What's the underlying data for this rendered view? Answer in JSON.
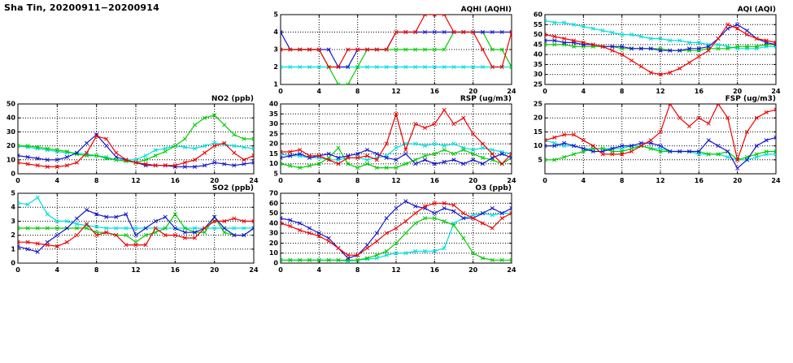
{
  "page_title": "Sha Tin, 20200911−20200914",
  "colors": {
    "red": "#ee0000",
    "blue": "#1515cc",
    "green": "#00cc00",
    "cyan": "#00dddd",
    "grid": "#000000"
  },
  "chart_data": [
    {
      "id": "aqhi",
      "type": "line",
      "title": "AQHI (AQHI)",
      "xlabel": "",
      "ylabel": "",
      "xlim": [
        0,
        24
      ],
      "xticks": [
        0,
        4,
        8,
        12,
        16,
        20,
        24
      ],
      "ylim": [
        1,
        5
      ],
      "yticks": [
        1,
        2,
        3,
        4,
        5
      ],
      "grid": true,
      "legend": "none",
      "series": [
        {
          "color": "cyan",
          "values": [
            2,
            2,
            2,
            2,
            2,
            2,
            2,
            2,
            2,
            2,
            2,
            2,
            2,
            2,
            2,
            2,
            2,
            2,
            2,
            2,
            2,
            2,
            2,
            2,
            2
          ]
        },
        {
          "color": "green",
          "values": [
            3,
            3,
            3,
            3,
            3,
            2,
            1,
            1,
            2,
            3,
            3,
            3,
            3,
            3,
            3,
            3,
            3,
            3,
            4,
            4,
            4,
            4,
            3,
            3,
            2
          ]
        },
        {
          "color": "blue",
          "values": [
            4,
            3,
            3,
            3,
            3,
            3,
            2,
            2,
            3,
            3,
            3,
            3,
            4,
            4,
            4,
            4,
            4,
            4,
            4,
            4,
            4,
            4,
            4,
            4,
            4
          ]
        },
        {
          "color": "red",
          "values": [
            3,
            3,
            3,
            3,
            3,
            2,
            2,
            3,
            3,
            3,
            3,
            3,
            4,
            4,
            4,
            5,
            5,
            5,
            4,
            4,
            4,
            3,
            2,
            2,
            4
          ]
        }
      ]
    },
    {
      "id": "aqi",
      "type": "line",
      "title": "AQI (AQI)",
      "xlabel": "",
      "ylabel": "",
      "xlim": [
        0,
        24
      ],
      "xticks": [
        0,
        4,
        8,
        12,
        16,
        20,
        24
      ],
      "ylim": [
        25,
        60
      ],
      "yticks": [
        25,
        30,
        35,
        40,
        45,
        50,
        55,
        60
      ],
      "grid": true,
      "legend": "none",
      "series": [
        {
          "color": "cyan",
          "values": [
            57,
            56,
            56,
            55,
            54,
            53,
            52,
            51,
            50,
            50,
            49,
            48,
            48,
            47,
            47,
            46,
            46,
            45,
            45,
            44,
            43,
            43,
            43,
            44,
            44
          ]
        },
        {
          "color": "green",
          "values": [
            45,
            45,
            45,
            44,
            44,
            44,
            44,
            44,
            43,
            43,
            43,
            43,
            43,
            42,
            42,
            42,
            42,
            43,
            43,
            43,
            44,
            44,
            44,
            45,
            45
          ]
        },
        {
          "color": "blue",
          "values": [
            47,
            47,
            46,
            46,
            45,
            45,
            44,
            44,
            44,
            43,
            43,
            43,
            42,
            42,
            42,
            43,
            43,
            44,
            48,
            53,
            55,
            52,
            48,
            46,
            45
          ]
        },
        {
          "color": "red",
          "values": [
            50,
            49,
            48,
            47,
            46,
            45,
            44,
            42,
            40,
            37,
            34,
            31,
            30,
            31,
            33,
            36,
            39,
            42,
            48,
            55,
            53,
            50,
            48,
            47,
            46
          ]
        }
      ]
    },
    {
      "id": "no2",
      "type": "line",
      "title": "NO2 (ppb)",
      "xlabel": "",
      "ylabel": "",
      "xlim": [
        0,
        24
      ],
      "xticks": [
        0,
        4,
        8,
        12,
        16,
        20,
        24
      ],
      "ylim": [
        0,
        50
      ],
      "yticks": [
        0,
        10,
        20,
        30,
        40,
        50
      ],
      "grid": true,
      "legend": "none",
      "series": [
        {
          "color": "cyan",
          "values": [
            20,
            19,
            18,
            17,
            16,
            15,
            15,
            14,
            13,
            12,
            10,
            10,
            10,
            13,
            17,
            18,
            20,
            19,
            18,
            20,
            22,
            21,
            20,
            19,
            18
          ]
        },
        {
          "color": "green",
          "values": [
            20,
            20,
            19,
            18,
            17,
            16,
            14,
            13,
            13,
            11,
            10,
            9,
            8,
            10,
            13,
            16,
            20,
            25,
            35,
            40,
            42,
            35,
            28,
            25,
            25
          ]
        },
        {
          "color": "blue",
          "values": [
            13,
            12,
            11,
            10,
            10,
            12,
            15,
            22,
            28,
            20,
            12,
            10,
            8,
            6,
            6,
            6,
            5,
            5,
            5,
            6,
            8,
            7,
            6,
            7,
            8
          ]
        },
        {
          "color": "red",
          "values": [
            8,
            7,
            6,
            5,
            5,
            6,
            8,
            15,
            27,
            25,
            15,
            10,
            8,
            7,
            6,
            6,
            6,
            8,
            10,
            15,
            20,
            22,
            15,
            10,
            13
          ]
        }
      ]
    },
    {
      "id": "rsp",
      "type": "line",
      "title": "RSP (ug/m3)",
      "xlabel": "",
      "ylabel": "",
      "xlim": [
        0,
        24
      ],
      "xticks": [
        0,
        4,
        8,
        12,
        16,
        20,
        24
      ],
      "ylim": [
        5,
        40
      ],
      "yticks": [
        5,
        10,
        15,
        20,
        25,
        30,
        35,
        40
      ],
      "grid": true,
      "legend": "none",
      "series": [
        {
          "color": "cyan",
          "values": [
            15,
            14,
            14,
            13,
            13,
            12,
            12,
            13,
            13,
            12,
            13,
            14,
            18,
            20,
            20,
            19,
            20,
            19,
            20,
            18,
            17,
            18,
            17,
            16,
            15
          ]
        },
        {
          "color": "green",
          "values": [
            10,
            9,
            8,
            9,
            10,
            13,
            18,
            10,
            8,
            10,
            8,
            8,
            8,
            10,
            12,
            14,
            15,
            17,
            15,
            17,
            15,
            13,
            12,
            10,
            13
          ]
        },
        {
          "color": "blue",
          "values": [
            13,
            14,
            15,
            13,
            14,
            15,
            13,
            14,
            15,
            17,
            15,
            13,
            12,
            15,
            10,
            12,
            10,
            11,
            12,
            10,
            12,
            10,
            13,
            15,
            13
          ]
        },
        {
          "color": "red",
          "values": [
            16,
            16,
            17,
            14,
            14,
            12,
            10,
            13,
            13,
            14,
            12,
            20,
            35,
            17,
            30,
            28,
            30,
            37,
            30,
            33,
            25,
            20,
            15,
            10,
            15
          ]
        }
      ]
    },
    {
      "id": "fsp",
      "type": "line",
      "title": "FSP (ug/m3)",
      "xlabel": "",
      "ylabel": "",
      "xlim": [
        0,
        24
      ],
      "xticks": [
        0,
        4,
        8,
        12,
        16,
        20,
        24
      ],
      "ylim": [
        0,
        25
      ],
      "yticks": [
        5,
        10,
        15,
        20,
        25
      ],
      "grid": true,
      "legend": "none",
      "series": [
        {
          "color": "cyan",
          "values": [
            12,
            11,
            10,
            10,
            9,
            9,
            9,
            9,
            9,
            10,
            10,
            9,
            9,
            8,
            8,
            8,
            7,
            7,
            7,
            6,
            5,
            5,
            6,
            7,
            7
          ]
        },
        {
          "color": "green",
          "values": [
            5,
            5,
            6,
            7,
            8,
            9,
            9,
            8,
            8,
            9,
            10,
            9,
            8,
            8,
            8,
            8,
            8,
            7,
            7,
            8,
            5,
            6,
            7,
            8,
            8
          ]
        },
        {
          "color": "blue",
          "values": [
            10,
            10,
            11,
            10,
            9,
            8,
            8,
            9,
            10,
            10,
            11,
            11,
            10,
            8,
            8,
            8,
            8,
            12,
            10,
            8,
            2,
            5,
            10,
            12,
            13
          ]
        },
        {
          "color": "red",
          "values": [
            12,
            13,
            14,
            14,
            12,
            10,
            7,
            7,
            7,
            8,
            10,
            12,
            15,
            25,
            20,
            17,
            20,
            18,
            25,
            20,
            5,
            15,
            20,
            22,
            23
          ]
        }
      ]
    },
    {
      "id": "so2",
      "type": "line",
      "title": "SO2 (ppb)",
      "xlabel": "",
      "ylabel": "",
      "xlim": [
        0,
        24
      ],
      "xticks": [
        0,
        4,
        8,
        12,
        16,
        20,
        24
      ],
      "ylim": [
        0,
        5
      ],
      "yticks": [
        0,
        1,
        2,
        3,
        4,
        5
      ],
      "grid": true,
      "legend": "none",
      "series": [
        {
          "color": "cyan",
          "values": [
            4.3,
            4.2,
            4.7,
            3.5,
            3,
            3,
            2.8,
            2.7,
            2.6,
            2.5,
            2.5,
            2.5,
            2.5,
            2.5,
            2.5,
            2.5,
            2.5,
            2.5,
            2.5,
            2.5,
            2.5,
            2.5,
            2.5,
            2.5,
            2.5
          ]
        },
        {
          "color": "green",
          "values": [
            2.5,
            2.5,
            2.5,
            2.5,
            2.5,
            2.5,
            2.5,
            2.5,
            2.2,
            2.2,
            2,
            2,
            1.5,
            2,
            2.2,
            2.5,
            3.5,
            2.5,
            2.2,
            2.2,
            3.3,
            2.2,
            2,
            2,
            2.5
          ]
        },
        {
          "color": "blue",
          "values": [
            1.2,
            1,
            0.8,
            1.5,
            2,
            2.5,
            3.2,
            3.8,
            3.5,
            3.3,
            3.3,
            3.5,
            2,
            2.5,
            3,
            3.3,
            2.5,
            2.2,
            2.2,
            2.5,
            3.3,
            2.5,
            2,
            2,
            2.5
          ]
        },
        {
          "color": "red",
          "values": [
            1.5,
            1.5,
            1.4,
            1.3,
            1.2,
            1.5,
            2,
            2.8,
            2,
            2.2,
            2,
            1.3,
            1.3,
            1.3,
            2.5,
            2,
            2,
            1.8,
            1.8,
            2.5,
            3,
            3,
            3.2,
            3,
            3
          ]
        }
      ]
    },
    {
      "id": "o3",
      "type": "line",
      "title": "O3 (ppb)",
      "xlabel": "",
      "ylabel": "",
      "xlim": [
        0,
        24
      ],
      "xticks": [
        0,
        4,
        8,
        12,
        16,
        20,
        24
      ],
      "ylim": [
        0,
        70
      ],
      "yticks": [
        0,
        10,
        20,
        30,
        40,
        50,
        60,
        70
      ],
      "grid": true,
      "legend": "none",
      "series": [
        {
          "color": "cyan",
          "values": [
            3,
            3,
            3,
            3,
            3,
            3,
            3,
            2,
            3,
            4,
            5,
            8,
            10,
            10,
            12,
            12,
            12,
            15,
            40,
            45,
            48,
            50,
            48,
            50,
            50
          ]
        },
        {
          "color": "green",
          "values": [
            3,
            3,
            3,
            3,
            3,
            3,
            3,
            3,
            3,
            5,
            8,
            12,
            20,
            30,
            40,
            45,
            45,
            42,
            38,
            25,
            10,
            5,
            3,
            3,
            3
          ]
        },
        {
          "color": "blue",
          "values": [
            45,
            43,
            40,
            35,
            30,
            25,
            15,
            5,
            8,
            18,
            30,
            45,
            55,
            62,
            57,
            55,
            50,
            55,
            52,
            45,
            45,
            50,
            55,
            50,
            55
          ]
        },
        {
          "color": "red",
          "values": [
            40,
            37,
            33,
            30,
            27,
            22,
            15,
            8,
            8,
            15,
            22,
            30,
            35,
            42,
            50,
            57,
            60,
            60,
            58,
            50,
            45,
            40,
            35,
            45,
            50
          ]
        }
      ]
    }
  ]
}
